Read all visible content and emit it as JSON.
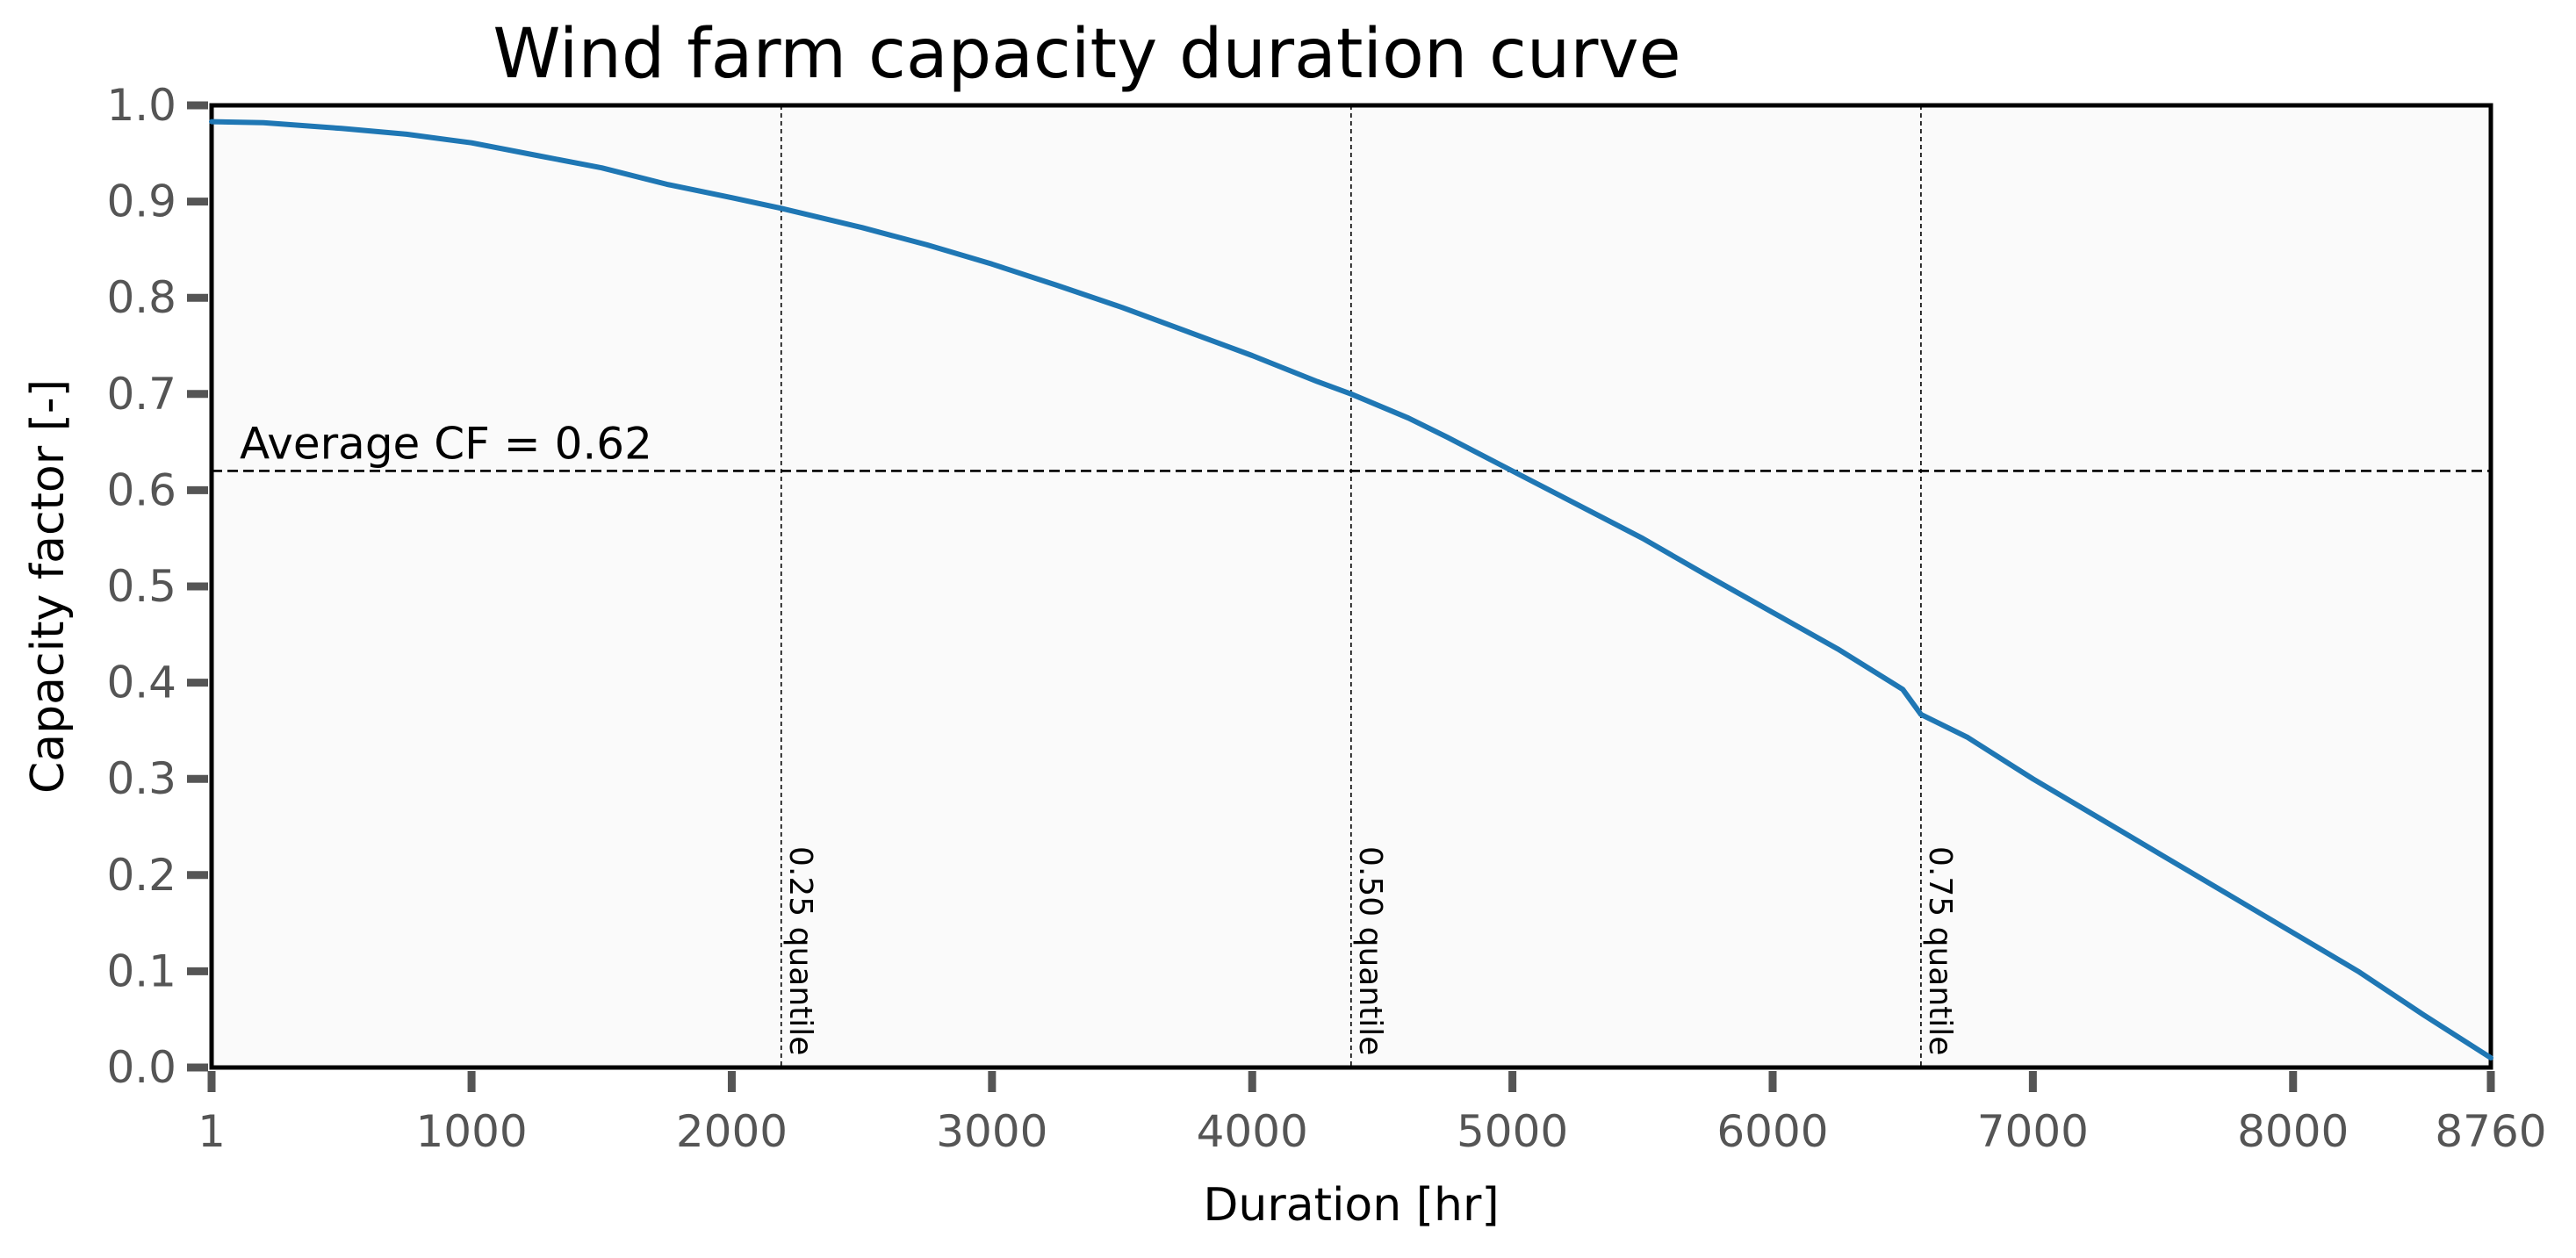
{
  "chart_data": {
    "type": "line",
    "title": "Wind farm capacity duration curve",
    "xlabel": "Duration [hr]",
    "ylabel": "Capacity factor [-]",
    "xlim": [
      1,
      8760
    ],
    "ylim": [
      0.0,
      1.0
    ],
    "x_ticks": [
      1,
      1000,
      2000,
      3000,
      4000,
      5000,
      6000,
      7000,
      8000,
      8760
    ],
    "x_tick_labels": [
      "1",
      "1000",
      "2000",
      "3000",
      "4000",
      "5000",
      "6000",
      "7000",
      "8000",
      "8760"
    ],
    "y_ticks": [
      0.0,
      0.1,
      0.2,
      0.3,
      0.4,
      0.5,
      0.6,
      0.7,
      0.8,
      0.9,
      1.0
    ],
    "y_tick_labels": [
      "0.0",
      "0.1",
      "0.2",
      "0.3",
      "0.4",
      "0.5",
      "0.6",
      "0.7",
      "0.8",
      "0.9",
      "1.0"
    ],
    "grid": false,
    "series": [
      {
        "color": "#1f77b4",
        "x": [
          1,
          200,
          500,
          750,
          1000,
          1250,
          1500,
          1750,
          2000,
          2190,
          2500,
          2750,
          3000,
          3250,
          3500,
          3750,
          4000,
          4250,
          4380,
          4600,
          4750,
          5000,
          5250,
          5500,
          5750,
          6000,
          6250,
          6500,
          6570,
          6750,
          7000,
          7250,
          7500,
          7750,
          8000,
          8250,
          8500,
          8760
        ],
        "y": [
          0.983,
          0.982,
          0.976,
          0.97,
          0.961,
          0.948,
          0.935,
          0.918,
          0.904,
          0.893,
          0.873,
          0.855,
          0.835,
          0.813,
          0.79,
          0.765,
          0.74,
          0.713,
          0.7,
          0.675,
          0.655,
          0.62,
          0.585,
          0.55,
          0.511,
          0.473,
          0.435,
          0.393,
          0.367,
          0.343,
          0.3,
          0.26,
          0.22,
          0.18,
          0.14,
          0.1,
          0.055,
          0.01
        ]
      }
    ],
    "average": {
      "value": 0.62,
      "label": "Average CF = 0.62",
      "color": "#000000"
    },
    "quantiles": [
      {
        "x": 2190,
        "label": "0.25 quantile"
      },
      {
        "x": 4380,
        "label": "0.50 quantile"
      },
      {
        "x": 6570,
        "label": "0.75 quantile"
      }
    ],
    "colors": {
      "line": "#1f77b4",
      "plot_background": "#fafafa",
      "tick_text": "#555555"
    }
  }
}
